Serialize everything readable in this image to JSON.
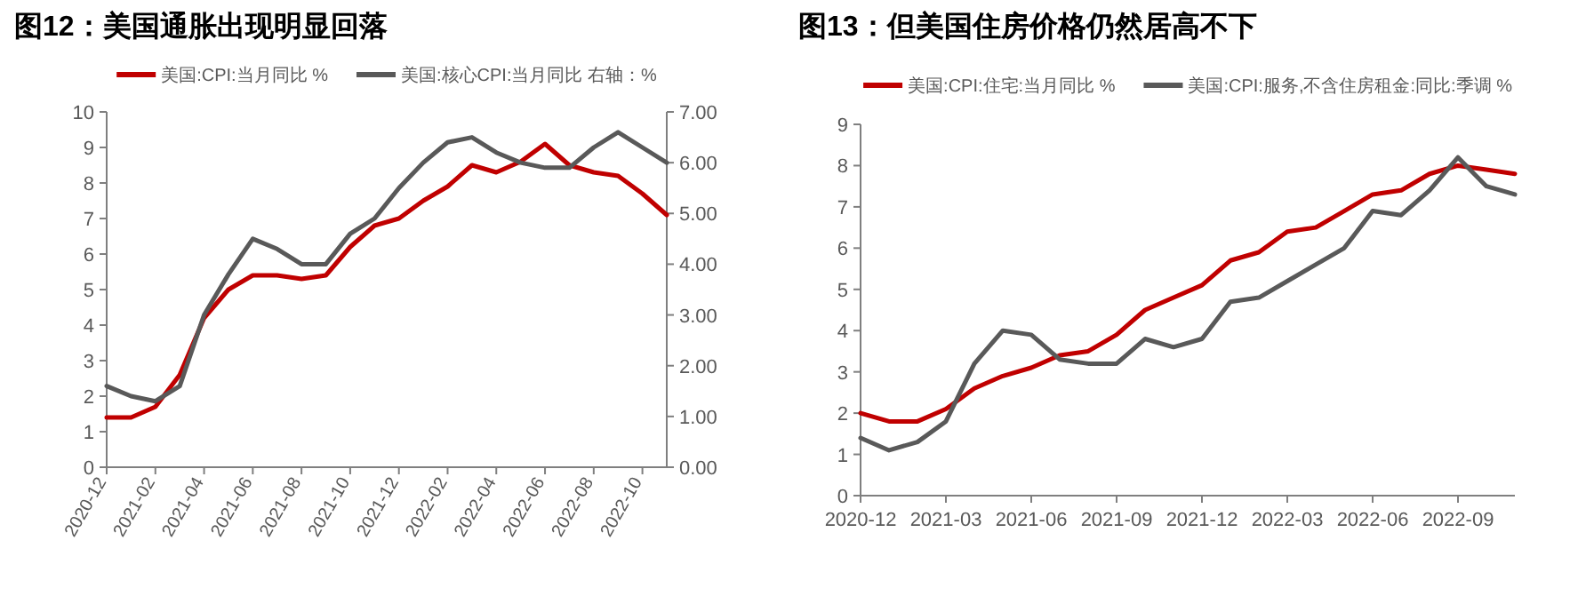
{
  "chart_data": [
    {
      "type": "line",
      "title": "图12：美国通胀出现明显回落",
      "xlim": [
        "2020-12",
        "2022-11"
      ],
      "xticks": [
        "2020-12",
        "2021-02",
        "2021-04",
        "2021-06",
        "2021-08",
        "2021-10",
        "2021-12",
        "2022-02",
        "2022-04",
        "2022-06",
        "2022-08",
        "2022-10"
      ],
      "ylim": [
        0,
        10
      ],
      "yticks": [
        0,
        1,
        2,
        3,
        4,
        5,
        6,
        7,
        8,
        9,
        10
      ],
      "y2lim": [
        0,
        7
      ],
      "y2ticks": [
        {
          "value": 0,
          "label": "0.00"
        },
        {
          "value": 1,
          "label": "1.00"
        },
        {
          "value": 2,
          "label": "2.00"
        },
        {
          "value": 3,
          "label": "3.00"
        },
        {
          "value": 4,
          "label": "4.00"
        },
        {
          "value": 5,
          "label": "5.00"
        },
        {
          "value": 6,
          "label": "6.00"
        },
        {
          "value": 7,
          "label": "7.00"
        }
      ],
      "legend": "top",
      "grid": false,
      "series": [
        {
          "name": "美国:CPI:当月同比 %",
          "color": "#c00000",
          "x": [
            "2020-12",
            "2021-01",
            "2021-02",
            "2021-03",
            "2021-04",
            "2021-05",
            "2021-06",
            "2021-07",
            "2021-08",
            "2021-09",
            "2021-10",
            "2021-11",
            "2021-12",
            "2022-01",
            "2022-02",
            "2022-03",
            "2022-04",
            "2022-05",
            "2022-06",
            "2022-07",
            "2022-08",
            "2022-09",
            "2022-10",
            "2022-11"
          ],
          "values": [
            1.4,
            1.4,
            1.7,
            2.6,
            4.2,
            5.0,
            5.4,
            5.4,
            5.3,
            5.4,
            6.2,
            6.8,
            7.0,
            7.5,
            7.9,
            8.5,
            8.3,
            8.6,
            9.1,
            8.5,
            8.3,
            8.2,
            7.7,
            7.1
          ]
        },
        {
          "name": "美国:核心CPI:当月同比 右轴：%",
          "color": "#595959",
          "axis": "y2",
          "x": [
            "2020-12",
            "2021-01",
            "2021-02",
            "2021-03",
            "2021-04",
            "2021-05",
            "2021-06",
            "2021-07",
            "2021-08",
            "2021-09",
            "2021-10",
            "2021-11",
            "2021-12",
            "2022-01",
            "2022-02",
            "2022-03",
            "2022-04",
            "2022-05",
            "2022-06",
            "2022-07",
            "2022-08",
            "2022-09",
            "2022-10",
            "2022-11"
          ],
          "values": [
            1.6,
            1.4,
            1.3,
            1.6,
            3.0,
            3.8,
            4.5,
            4.3,
            4.0,
            4.0,
            4.6,
            4.9,
            5.5,
            6.0,
            6.4,
            6.5,
            6.2,
            6.0,
            5.9,
            5.9,
            6.3,
            6.6,
            6.3,
            6.0
          ]
        }
      ]
    },
    {
      "type": "line",
      "title": "图13：但美国住房价格仍然居高不下",
      "xlim": [
        "2020-12",
        "2022-11"
      ],
      "xticks": [
        "2020-12",
        "2021-03",
        "2021-06",
        "2021-09",
        "2021-12",
        "2022-03",
        "2022-06",
        "2022-09"
      ],
      "ylim": [
        0,
        9
      ],
      "yticks": [
        0,
        1,
        2,
        3,
        4,
        5,
        6,
        7,
        8,
        9
      ],
      "legend": "top",
      "grid": false,
      "series": [
        {
          "name": "美国:CPI:住宅:当月同比 %",
          "color": "#c00000",
          "x": [
            "2020-12",
            "2021-01",
            "2021-02",
            "2021-03",
            "2021-04",
            "2021-05",
            "2021-06",
            "2021-07",
            "2021-08",
            "2021-09",
            "2021-10",
            "2021-11",
            "2021-12",
            "2022-01",
            "2022-02",
            "2022-03",
            "2022-04",
            "2022-05",
            "2022-06",
            "2022-07",
            "2022-08",
            "2022-09",
            "2022-10",
            "2022-11"
          ],
          "values": [
            2.0,
            1.8,
            1.8,
            2.1,
            2.6,
            2.9,
            3.1,
            3.4,
            3.5,
            3.9,
            4.5,
            4.8,
            5.1,
            5.7,
            5.9,
            6.4,
            6.5,
            6.9,
            7.3,
            7.4,
            7.8,
            8.0,
            7.9,
            7.8
          ]
        },
        {
          "name": "美国:CPI:服务,不含住房租金:同比:季调 %",
          "color": "#595959",
          "x": [
            "2020-12",
            "2021-01",
            "2021-02",
            "2021-03",
            "2021-04",
            "2021-05",
            "2021-06",
            "2021-07",
            "2021-08",
            "2021-09",
            "2021-10",
            "2021-11",
            "2021-12",
            "2022-01",
            "2022-02",
            "2022-03",
            "2022-04",
            "2022-05",
            "2022-06",
            "2022-07",
            "2022-08",
            "2022-09",
            "2022-10",
            "2022-11"
          ],
          "values": [
            1.4,
            1.1,
            1.3,
            1.8,
            3.2,
            4.0,
            3.9,
            3.3,
            3.2,
            3.2,
            3.8,
            3.6,
            3.8,
            4.7,
            4.8,
            5.2,
            5.6,
            6.0,
            6.9,
            6.8,
            7.4,
            8.2,
            7.5,
            7.3
          ]
        }
      ]
    }
  ]
}
